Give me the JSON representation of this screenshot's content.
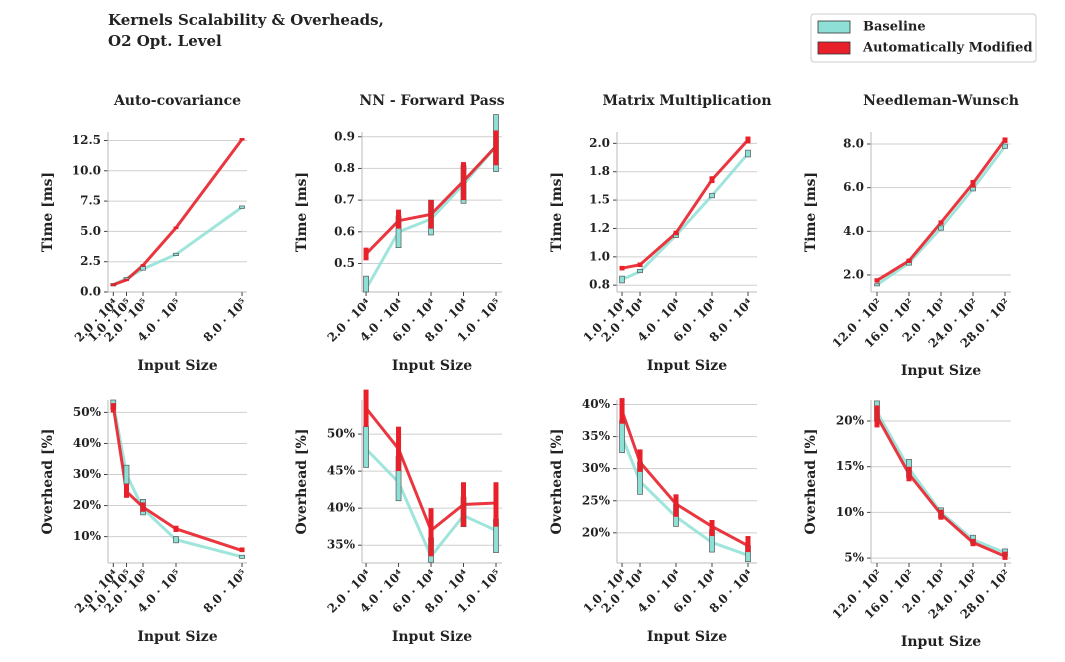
{
  "title": [
    "Kernels Scalability & Overheads,",
    "O2 Opt. Level"
  ],
  "legend": {
    "items": [
      {
        "name": "Baseline",
        "color": "#8ee0d6"
      },
      {
        "name": "Automatically Modified",
        "color": "#e8202a"
      }
    ]
  },
  "chart_data": [
    {
      "type": "line",
      "title": "Auto-covariance",
      "x_label": "Input Size",
      "y_label": "Time [ms]",
      "x": [
        20000,
        100000,
        200000,
        400000,
        800000
      ],
      "xlim": [
        -12000,
        830000
      ],
      "xticks": [
        {
          "value": 20000,
          "label": "2.0 · 10⁴"
        },
        {
          "value": 100000,
          "label": "1.0 · 10⁵"
        },
        {
          "value": 200000,
          "label": "2.0 · 10⁵"
        },
        {
          "value": 400000,
          "label": "4.0 · 10⁵"
        },
        {
          "value": 800000,
          "label": "8.0 · 10⁵"
        }
      ],
      "ylim": [
        0,
        13.2
      ],
      "yticks": [
        {
          "value": 0,
          "label": "0.0"
        },
        2.5,
        {
          "value": 5,
          "label": "5.0"
        },
        7.5,
        {
          "value": 10,
          "label": "10.0"
        },
        12.5
      ],
      "grid": true,
      "series": [
        {
          "values": [
            0.6,
            1.1,
            1.9,
            3.1,
            7.0
          ],
          "lows": [
            0.5,
            1.0,
            1.8,
            3.0,
            6.9
          ],
          "highs": [
            0.7,
            1.2,
            2.1,
            3.2,
            7.1
          ]
        },
        {
          "values": [
            0.6,
            1.0,
            2.2,
            5.3,
            12.6
          ],
          "lows": [
            0.5,
            0.9,
            2.1,
            5.2,
            12.5
          ],
          "highs": [
            0.7,
            1.1,
            2.3,
            5.4,
            12.7
          ]
        }
      ]
    },
    {
      "type": "line",
      "title": "NN - Forward Pass",
      "x_label": "Input Size",
      "y_label": "Time [ms]",
      "x": [
        20000,
        40000,
        60000,
        80000,
        100000
      ],
      "xlim": [
        17500,
        103700
      ],
      "xticks": [
        {
          "value": 20000,
          "label": "2.0 · 10⁴"
        },
        {
          "value": 40000,
          "label": "4.0 · 10⁴"
        },
        {
          "value": 60000,
          "label": "6.0 · 10⁴"
        },
        {
          "value": 80000,
          "label": "8.0 · 10⁴"
        },
        {
          "value": 100000,
          "label": "1.0 · 10⁵"
        }
      ],
      "ylim": [
        0.41,
        0.915
      ],
      "yticks": [
        0.5,
        0.6,
        0.7,
        0.8,
        0.9
      ],
      "grid": true,
      "series": [
        {
          "values": [
            0.42,
            0.6,
            0.64,
            0.75,
            0.87
          ],
          "lows": [
            0.41,
            0.55,
            0.59,
            0.69,
            0.79
          ],
          "highs": [
            0.46,
            0.65,
            0.7,
            0.81,
            0.97
          ]
        },
        {
          "values": [
            0.53,
            0.635,
            0.655,
            0.76,
            0.87
          ],
          "lows": [
            0.51,
            0.61,
            0.61,
            0.7,
            0.81
          ],
          "highs": [
            0.55,
            0.67,
            0.7,
            0.82,
            0.92
          ]
        }
      ]
    },
    {
      "type": "line",
      "title": "Matrix Multiplication",
      "x_label": "Input Size",
      "y_label": "Time [ms]",
      "x": [
        10000,
        20000,
        40000,
        60000,
        80000
      ],
      "xlim": [
        7200,
        85000
      ],
      "xticks": [
        {
          "value": 10000,
          "label": "1.0 · 10⁴"
        },
        {
          "value": 20000,
          "label": "2.0 · 10⁴"
        },
        {
          "value": 40000,
          "label": "4.0 · 10⁴"
        },
        {
          "value": 60000,
          "label": "6.0 · 10⁴"
        },
        {
          "value": 80000,
          "label": "8.0 · 10⁴"
        }
      ],
      "ylim": [
        0.69,
        2.1
      ],
      "yticks": [
        {
          "value": 0.75,
          "label": "0.8"
        },
        {
          "value": 1,
          "label": "1.0"
        },
        {
          "value": 1.25,
          "label": "1.2"
        },
        1.5,
        {
          "value": 1.75,
          "label": "1.8"
        },
        {
          "value": 2,
          "label": "2.0"
        }
      ],
      "grid": true,
      "series": [
        {
          "values": [
            0.8,
            0.87,
            1.19,
            1.54,
            1.91
          ],
          "lows": [
            0.77,
            0.86,
            1.17,
            1.52,
            1.88
          ],
          "highs": [
            0.83,
            0.89,
            1.21,
            1.56,
            1.94
          ]
        },
        {
          "values": [
            0.9,
            0.93,
            1.21,
            1.68,
            2.03
          ],
          "lows": [
            0.88,
            0.91,
            1.19,
            1.65,
            2.0
          ],
          "highs": [
            0.92,
            0.95,
            1.23,
            1.71,
            2.06
          ]
        }
      ]
    },
    {
      "type": "line",
      "title": "Needleman-Wunsch",
      "x_label": "Input Size",
      "y_label": "Time [ms]",
      "x": [
        1200,
        1600,
        2000,
        2400,
        2800
      ],
      "xlim": [
        1125,
        2875
      ],
      "xticks": [
        {
          "value": 1200,
          "label": "12.0 · 10²"
        },
        {
          "value": 1600,
          "label": "16.0 · 10²"
        },
        {
          "value": 2000,
          "label": "2.0 · 10³"
        },
        {
          "value": 2400,
          "label": "24.0 · 10²"
        },
        {
          "value": 2800,
          "label": "28.0 · 10²"
        }
      ],
      "ylim": [
        1.22,
        8.55
      ],
      "yticks": [
        {
          "value": 2,
          "label": "2.0"
        },
        {
          "value": 4,
          "label": "4.0"
        },
        {
          "value": 6,
          "label": "6.0"
        },
        {
          "value": 8,
          "label": "8.0"
        }
      ],
      "grid": true,
      "series": [
        {
          "values": [
            1.55,
            2.55,
            4.15,
            5.95,
            7.9
          ],
          "lows": [
            1.5,
            2.45,
            4.05,
            5.85,
            7.8
          ],
          "highs": [
            1.6,
            2.65,
            4.25,
            6.05,
            8.0
          ]
        },
        {
          "values": [
            1.75,
            2.65,
            4.4,
            6.2,
            8.2
          ],
          "lows": [
            1.65,
            2.55,
            4.3,
            6.0,
            8.05
          ],
          "highs": [
            1.85,
            2.75,
            4.5,
            6.35,
            8.3
          ]
        }
      ]
    },
    {
      "type": "line",
      "x_label": "Input Size",
      "y_label": "Overhead [%]",
      "x": [
        20000,
        100000,
        200000,
        400000,
        800000
      ],
      "xlim": [
        -12000,
        830000
      ],
      "xticks": [
        {
          "value": 20000,
          "label": "2.0 · 10⁴"
        },
        {
          "value": 100000,
          "label": "1.0 · 10⁵"
        },
        {
          "value": 200000,
          "label": "2.0 · 10⁵"
        },
        {
          "value": 400000,
          "label": "4.0 · 10⁵"
        },
        {
          "value": 800000,
          "label": "8.0 · 10⁵"
        }
      ],
      "ylim": [
        1.5,
        54
      ],
      "yticks": [
        {
          "value": 10,
          "label": "10%"
        },
        {
          "value": 20,
          "label": "20%"
        },
        {
          "value": 30,
          "label": "30%"
        },
        {
          "value": 40,
          "label": "40%"
        },
        {
          "value": 50,
          "label": "50%"
        }
      ],
      "grid": true,
      "series": [
        {
          "values": [
            53,
            30,
            19,
            9,
            3.5
          ],
          "lows": [
            51,
            27,
            17,
            8,
            3
          ],
          "highs": [
            54,
            33,
            22,
            10,
            4
          ]
        },
        {
          "values": [
            52,
            24.5,
            19.5,
            12.5,
            5.5
          ],
          "lows": [
            50,
            22.5,
            18,
            11.5,
            5
          ],
          "highs": [
            53,
            27,
            21,
            13.5,
            6.5
          ]
        }
      ]
    },
    {
      "type": "line",
      "x_label": "Input Size",
      "y_label": "Overhead [%]",
      "x": [
        20000,
        40000,
        60000,
        80000,
        100000
      ],
      "xlim": [
        17500,
        103700
      ],
      "xticks": [
        {
          "value": 20000,
          "label": "2.0 · 10⁴"
        },
        {
          "value": 40000,
          "label": "4.0 · 10⁴"
        },
        {
          "value": 60000,
          "label": "6.0 · 10⁴"
        },
        {
          "value": 80000,
          "label": "8.0 · 10⁴"
        },
        {
          "value": 100000,
          "label": "1.0 · 10⁵"
        }
      ],
      "ylim": [
        32.6,
        54.6
      ],
      "yticks": [
        {
          "value": 35,
          "label": "35%"
        },
        {
          "value": 40,
          "label": "40%"
        },
        {
          "value": 45,
          "label": "45%"
        },
        {
          "value": 50,
          "label": "50%"
        }
      ],
      "grid": true,
      "series": [
        {
          "values": [
            48,
            43.5,
            33.5,
            39,
            37
          ],
          "lows": [
            45.5,
            41,
            32.7,
            37.5,
            34
          ],
          "highs": [
            51,
            47,
            36,
            41.5,
            38.5
          ]
        },
        {
          "values": [
            53.5,
            48,
            37,
            40.5,
            40.7
          ],
          "lows": [
            51,
            45,
            33.5,
            37.5,
            37.5
          ],
          "highs": [
            56,
            51,
            40,
            43.5,
            43.5
          ]
        }
      ]
    },
    {
      "type": "line",
      "x_label": "Input Size",
      "y_label": "Overhead [%]",
      "x": [
        10000,
        20000,
        40000,
        60000,
        80000
      ],
      "xlim": [
        7200,
        85000
      ],
      "xticks": [
        {
          "value": 10000,
          "label": "1.0 · 10⁴"
        },
        {
          "value": 20000,
          "label": "2.0 · 10⁴"
        },
        {
          "value": 40000,
          "label": "4.0 · 10⁴"
        },
        {
          "value": 60000,
          "label": "6.0 · 10⁴"
        },
        {
          "value": 80000,
          "label": "8.0 · 10⁴"
        }
      ],
      "ylim": [
        15.3,
        40.7
      ],
      "yticks": [
        {
          "value": 20,
          "label": "20%"
        },
        {
          "value": 25,
          "label": "25%"
        },
        {
          "value": 30,
          "label": "30%"
        },
        {
          "value": 35,
          "label": "35%"
        },
        {
          "value": 40,
          "label": "40%"
        }
      ],
      "grid": true,
      "series": [
        {
          "values": [
            35,
            28,
            22.5,
            18.5,
            16.5
          ],
          "lows": [
            32.5,
            26,
            21,
            17,
            15.5
          ],
          "highs": [
            37.5,
            31,
            24.5,
            20.5,
            18
          ]
        },
        {
          "values": [
            39,
            31,
            24.5,
            21,
            18
          ],
          "lows": [
            37,
            29.5,
            22.5,
            19.5,
            17
          ],
          "highs": [
            41,
            33,
            26,
            22,
            19.5
          ]
        }
      ]
    },
    {
      "type": "line",
      "x_label": "Input Size",
      "y_label": "Overhead [%]",
      "x": [
        1200,
        1600,
        2000,
        2400,
        2800
      ],
      "xlim": [
        1125,
        2875
      ],
      "xticks": [
        {
          "value": 1200,
          "label": "12.0 · 10²"
        },
        {
          "value": 1600,
          "label": "16.0 · 10²"
        },
        {
          "value": 2000,
          "label": "2.0 · 10³"
        },
        {
          "value": 2400,
          "label": "24.0 · 10²"
        },
        {
          "value": 2800,
          "label": "28.0 · 10²"
        }
      ],
      "ylim": [
        4.46,
        22.3
      ],
      "yticks": [
        {
          "value": 5,
          "label": "5%"
        },
        {
          "value": 10,
          "label": "10%"
        },
        {
          "value": 15,
          "label": "15%"
        },
        {
          "value": 20,
          "label": "20%"
        }
      ],
      "grid": true,
      "series": [
        {
          "values": [
            21,
            14.8,
            10,
            7,
            5.6
          ],
          "lows": [
            20,
            13.8,
            9.4,
            6.6,
            5.2
          ],
          "highs": [
            22.2,
            15.8,
            10.5,
            7.5,
            6.0
          ]
        },
        {
          "values": [
            20.5,
            14.2,
            9.8,
            6.7,
            5.2
          ],
          "lows": [
            19.3,
            13.4,
            9.2,
            6.3,
            4.8
          ],
          "highs": [
            21.7,
            15,
            10.3,
            7.1,
            5.7
          ]
        }
      ]
    }
  ]
}
